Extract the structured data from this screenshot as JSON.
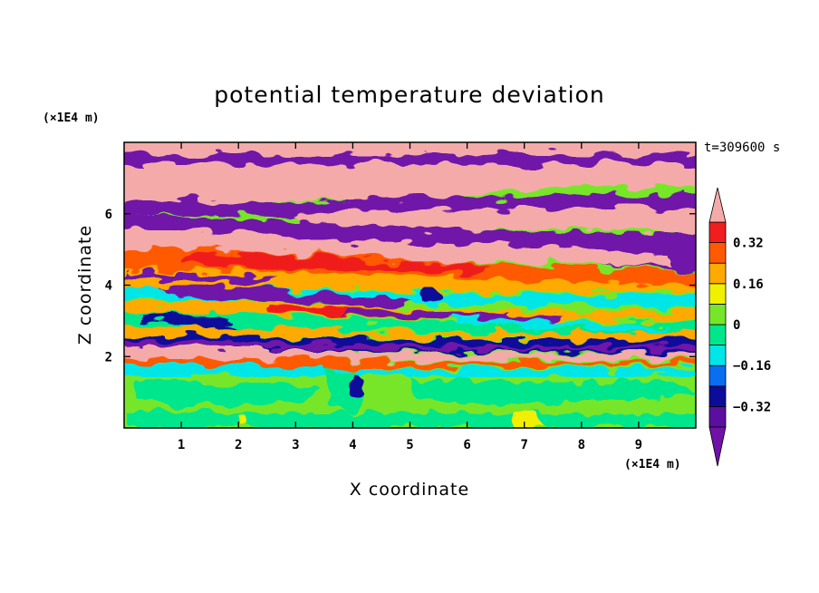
{
  "chart_data": {
    "type": "heatmap",
    "title": "potential temperature deviation",
    "xlabel": "X coordinate",
    "ylabel": "Z coordinate",
    "x_units": "(×1E4 m)",
    "y_units": "(×1E4 m)",
    "time_label": "t=309600 s",
    "xlim": [
      0,
      10
    ],
    "ylim": [
      0,
      8
    ],
    "x_ticks": [
      1,
      2,
      3,
      4,
      5,
      6,
      7,
      8,
      9
    ],
    "x_tick_labels": [
      "1",
      "2",
      "3",
      "4",
      "5",
      "6",
      "7",
      "8",
      "9"
    ],
    "y_ticks": [
      2,
      4,
      6
    ],
    "y_tick_labels": [
      "2",
      "4",
      "6"
    ],
    "colorbar": {
      "levels": [
        -0.4,
        -0.32,
        -0.24,
        -0.16,
        -0.08,
        0,
        0.08,
        0.16,
        0.24,
        0.32,
        0.4
      ],
      "tick_values": [
        0.32,
        0.16,
        0,
        -0.16,
        -0.32
      ],
      "tick_labels": [
        "0.32",
        "0.16",
        "0",
        "−0.16",
        "−0.32"
      ],
      "colors": [
        "#5a0fa0",
        "#0c0c9a",
        "#0a6ef0",
        "#00e6e6",
        "#00e68c",
        "#78e628",
        "#f0f000",
        "#ffaa00",
        "#ff5a00",
        "#f01e1e"
      ],
      "under_color": "#7012a8",
      "over_color": "#f5aaaa"
    },
    "layers": [
      {
        "z_bottom": 7.5,
        "z_top": 8.0,
        "dominant": "above 0.4"
      },
      {
        "z_bottom": 6.8,
        "z_top": 7.5,
        "dominant": "below -0.4"
      },
      {
        "z_bottom": 5.8,
        "z_top": 7.5,
        "dominant": "above 0.4"
      },
      {
        "z_bottom": 5.0,
        "z_top": 6.0,
        "dominant": "below -0.4"
      },
      {
        "z_bottom": 4.5,
        "z_top": 5.3,
        "dominant": "above 0.4"
      },
      {
        "z_bottom": 4.2,
        "z_top": 4.7,
        "dominant": "0.24 to 0.4"
      },
      {
        "z_bottom": 3.0,
        "z_top": 4.2,
        "dominant": "-0.16 to 0.16 mixed"
      },
      {
        "z_bottom": 2.1,
        "z_top": 2.7,
        "dominant": "below -0.32"
      },
      {
        "z_bottom": 1.7,
        "z_top": 2.1,
        "dominant": "above 0.4"
      },
      {
        "z_bottom": 0.0,
        "z_top": 1.6,
        "dominant": "0 to 0.08"
      }
    ]
  }
}
